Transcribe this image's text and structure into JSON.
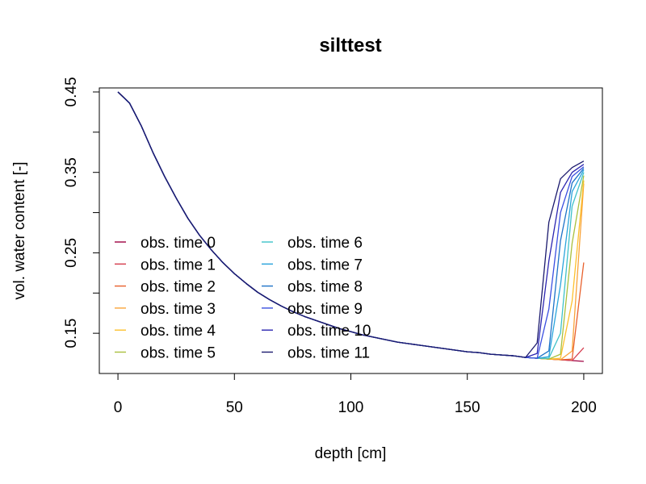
{
  "chart_data": {
    "type": "line",
    "title": "silttest",
    "xlabel": "depth [cm]",
    "ylabel": "vol. water content [-]",
    "xlim": [
      -8,
      208
    ],
    "ylim": [
      0.1,
      0.455
    ],
    "x_ticks": [
      0,
      50,
      100,
      150,
      200
    ],
    "y_ticks": [
      0.45,
      0.35,
      0.25,
      0.15
    ],
    "y_minor_ticks": [
      0.4,
      0.3,
      0.2
    ],
    "grid": false,
    "legend_position": "bottom-left",
    "x": [
      0,
      5,
      10,
      15,
      20,
      25,
      30,
      35,
      40,
      45,
      50,
      55,
      60,
      65,
      70,
      75,
      80,
      85,
      90,
      95,
      100,
      105,
      110,
      115,
      120,
      125,
      130,
      135,
      140,
      145,
      150,
      155,
      160,
      165,
      170,
      175
    ],
    "common_profile": [
      0.45,
      0.436,
      0.408,
      0.375,
      0.345,
      0.318,
      0.293,
      0.272,
      0.254,
      0.238,
      0.224,
      0.212,
      0.201,
      0.192,
      0.184,
      0.177,
      0.171,
      0.166,
      0.161,
      0.156,
      0.152,
      0.148,
      0.145,
      0.142,
      0.139,
      0.137,
      0.135,
      0.133,
      0.131,
      0.129,
      0.127,
      0.126,
      0.124,
      0.123,
      0.122,
      0.12
    ],
    "series": [
      {
        "name": "obs. time  0",
        "color": "#9e0142",
        "tail": [
          [
            180,
            0.119
          ],
          [
            185,
            0.118
          ],
          [
            190,
            0.117
          ],
          [
            195,
            0.116
          ],
          [
            200,
            0.115
          ]
        ]
      },
      {
        "name": "obs. time  1",
        "color": "#d53e4f",
        "tail": [
          [
            180,
            0.119
          ],
          [
            185,
            0.118
          ],
          [
            190,
            0.117
          ],
          [
            195,
            0.116
          ],
          [
            200,
            0.132
          ]
        ]
      },
      {
        "name": "obs. time  2",
        "color": "#e8602c",
        "tail": [
          [
            180,
            0.119
          ],
          [
            185,
            0.118
          ],
          [
            190,
            0.117
          ],
          [
            195,
            0.118
          ],
          [
            200,
            0.238
          ]
        ]
      },
      {
        "name": "obs. time  3",
        "color": "#f9a33a",
        "tail": [
          [
            180,
            0.119
          ],
          [
            185,
            0.118
          ],
          [
            190,
            0.117
          ],
          [
            195,
            0.128
          ],
          [
            200,
            0.336
          ]
        ]
      },
      {
        "name": "obs. time  4",
        "color": "#fdc02d",
        "tail": [
          [
            180,
            0.119
          ],
          [
            185,
            0.118
          ],
          [
            190,
            0.119
          ],
          [
            195,
            0.19
          ],
          [
            200,
            0.34
          ]
        ]
      },
      {
        "name": "obs. time  5",
        "color": "#a9c03e",
        "tail": [
          [
            180,
            0.119
          ],
          [
            185,
            0.118
          ],
          [
            190,
            0.124
          ],
          [
            195,
            0.262
          ],
          [
            200,
            0.346
          ]
        ]
      },
      {
        "name": "obs. time  6",
        "color": "#3fc1c9",
        "tail": [
          [
            180,
            0.119
          ],
          [
            185,
            0.119
          ],
          [
            190,
            0.15
          ],
          [
            195,
            0.308
          ],
          [
            200,
            0.35
          ]
        ]
      },
      {
        "name": "obs. time  7",
        "color": "#2aa4dc",
        "tail": [
          [
            180,
            0.119
          ],
          [
            185,
            0.121
          ],
          [
            190,
            0.21
          ],
          [
            195,
            0.326
          ],
          [
            200,
            0.353
          ]
        ]
      },
      {
        "name": "obs. time  8",
        "color": "#1e73c8",
        "tail": [
          [
            180,
            0.119
          ],
          [
            185,
            0.128
          ],
          [
            190,
            0.265
          ],
          [
            195,
            0.337
          ],
          [
            200,
            0.355
          ]
        ]
      },
      {
        "name": "obs. time  9",
        "color": "#3a4fe0",
        "tail": [
          [
            180,
            0.119
          ],
          [
            185,
            0.18
          ],
          [
            190,
            0.3
          ],
          [
            195,
            0.345
          ],
          [
            200,
            0.357
          ]
        ]
      },
      {
        "name": "obs. time  10",
        "color": "#2b25b0",
        "tail": [
          [
            180,
            0.125
          ],
          [
            185,
            0.24
          ],
          [
            190,
            0.325
          ],
          [
            195,
            0.35
          ],
          [
            200,
            0.36
          ]
        ]
      },
      {
        "name": "obs. time  11",
        "color": "#1b1a6e",
        "tail": [
          [
            180,
            0.138
          ],
          [
            185,
            0.288
          ],
          [
            190,
            0.342
          ],
          [
            195,
            0.356
          ],
          [
            200,
            0.364
          ]
        ]
      }
    ]
  }
}
